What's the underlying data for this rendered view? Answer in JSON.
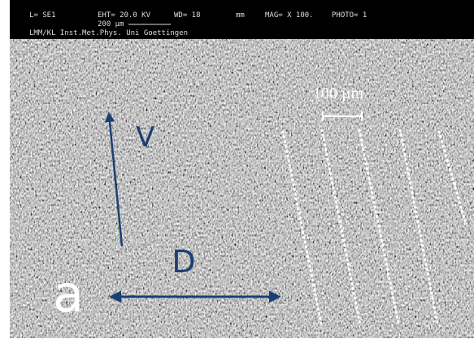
{
  "header": {
    "detector": "L= SE1",
    "voltage": "EHT= 20.0 KV",
    "working_distance": "WD= 18",
    "wd_unit": "mm",
    "magnification": "MAG= X 100.",
    "photo": "PHOTO= 1",
    "scale": "200 µm",
    "lab": "LMM/KL Inst.Met.Phys. Uni Goettingen"
  },
  "annotations": {
    "scale_bar": "100 µm",
    "velocity": "V",
    "direction": "D",
    "panel": "a"
  }
}
